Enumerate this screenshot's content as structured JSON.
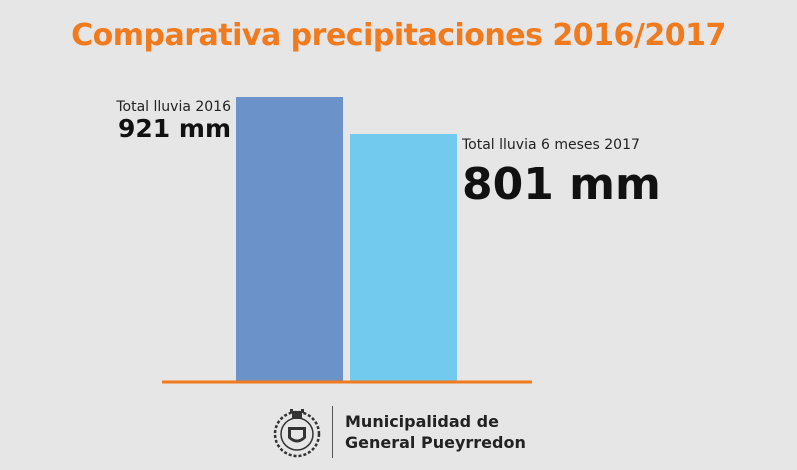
{
  "chart_data": {
    "type": "bar",
    "title": "Comparativa precipitaciones 2016/2017",
    "categories": [
      "Total lluvia 2016",
      "Total lluvia 6 meses 2017"
    ],
    "values": [
      921,
      801
    ],
    "value_labels": [
      "921 mm",
      "801 mm"
    ],
    "unit": "mm",
    "colors": [
      "#6b93c9",
      "#72cbef"
    ],
    "baseline_color": "#f07a1e",
    "ylim": [
      0,
      1000
    ],
    "grid": false
  },
  "footer": {
    "org_line1": "Municipalidad de",
    "org_line2": "General Pueyrredon"
  }
}
